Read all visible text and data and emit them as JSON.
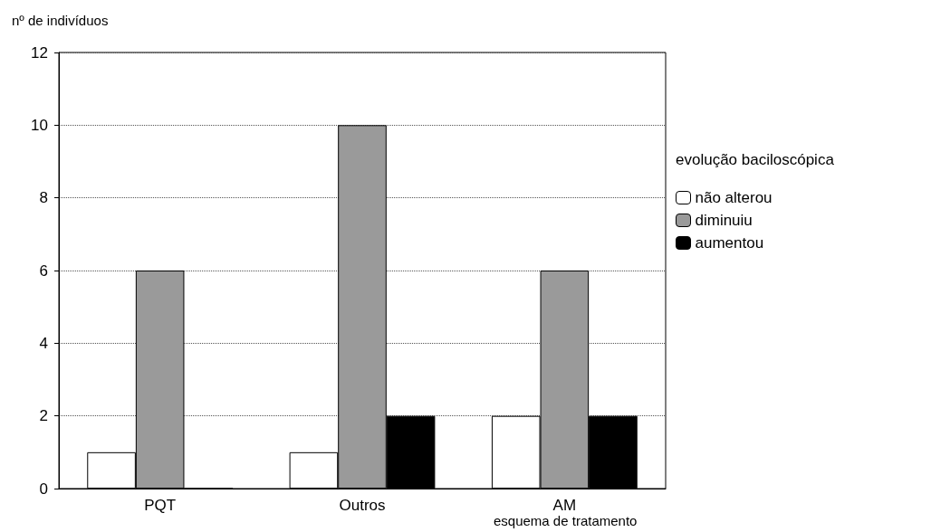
{
  "chart_data": {
    "type": "bar",
    "xlabel": "esquema de tratamento",
    "ylabel": "nº de indivíduos",
    "legend_title": "evolução baciloscópica",
    "categories": [
      "PQT",
      "Outros",
      "AM"
    ],
    "series": [
      {
        "name": "não alterou",
        "color": "#ffffff",
        "values": [
          1,
          1,
          2
        ]
      },
      {
        "name": "diminuiu",
        "color": "#9a9a9a",
        "values": [
          6,
          10,
          6
        ]
      },
      {
        "name": "aumentou",
        "color": "#000000",
        "values": [
          0,
          2,
          2
        ]
      }
    ],
    "ylim": [
      0,
      12
    ],
    "yticks": [
      0,
      2,
      4,
      6,
      8,
      10,
      12
    ],
    "grid": "y",
    "legend": "right"
  }
}
